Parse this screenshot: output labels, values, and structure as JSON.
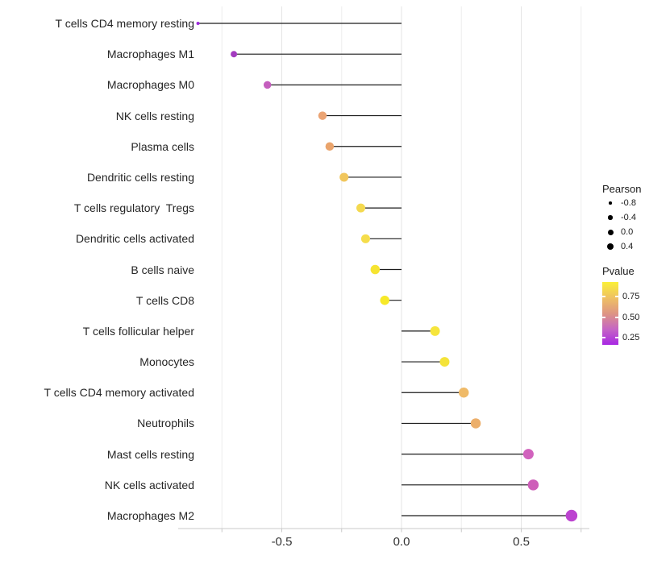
{
  "chart_data": {
    "type": "scatter",
    "variant": "lollipop",
    "orientation": "horizontal",
    "title": "",
    "xlabel": "",
    "ylabel": "",
    "xlim": [
      -0.93,
      0.79
    ],
    "grid": true,
    "baseline": 0,
    "x_gridlines": [
      -0.75,
      -0.5,
      -0.25,
      0,
      0.25,
      0.5,
      0.75
    ],
    "x_major_ticks": [
      -0.5,
      0,
      0.5
    ],
    "x_tick_labels": [
      "-0.5",
      "0.0",
      "0.5"
    ],
    "points": [
      {
        "label": "T cells CD4 memory resting",
        "pearson": -0.85,
        "color": "#9D2BDB",
        "diameter": 4
      },
      {
        "label": "Macrophages M1",
        "pearson": -0.7,
        "color": "#A33CBF",
        "diameter": 8
      },
      {
        "label": "Macrophages M0",
        "pearson": -0.56,
        "color": "#C55EBE",
        "diameter": 9.5
      },
      {
        "label": "NK cells resting",
        "pearson": -0.33,
        "color": "#EBA474",
        "diameter": 10.5
      },
      {
        "label": "Plasma cells",
        "pearson": -0.3,
        "color": "#EAA46C",
        "diameter": 10.5
      },
      {
        "label": "Dendritic cells resting",
        "pearson": -0.24,
        "color": "#F1C65C",
        "diameter": 11
      },
      {
        "label": "T cells regulatory  Tregs",
        "pearson": -0.17,
        "color": "#F4D94F",
        "diameter": 11
      },
      {
        "label": "Dendritic cells activated",
        "pearson": -0.15,
        "color": "#F5DD4B",
        "diameter": 11
      },
      {
        "label": "B cells naive",
        "pearson": -0.11,
        "color": "#F6E431",
        "diameter": 11.5
      },
      {
        "label": "T cells CD8",
        "pearson": -0.07,
        "color": "#F7E928",
        "diameter": 11.5
      },
      {
        "label": "T cells follicular helper",
        "pearson": 0.14,
        "color": "#F6E53C",
        "diameter": 12
      },
      {
        "label": "Monocytes",
        "pearson": 0.18,
        "color": "#F4E339",
        "diameter": 12
      },
      {
        "label": "T cells CD4 memory activated",
        "pearson": 0.26,
        "color": "#EFBA68",
        "diameter": 12.5
      },
      {
        "label": "Neutrophils",
        "pearson": 0.31,
        "color": "#ECAF6B",
        "diameter": 12.5
      },
      {
        "label": "Mast cells resting",
        "pearson": 0.53,
        "color": "#D162BD",
        "diameter": 13
      },
      {
        "label": "NK cells activated",
        "pearson": 0.55,
        "color": "#CE5EB9",
        "diameter": 13.5
      },
      {
        "label": "Macrophages M2",
        "pearson": 0.71,
        "color": "#BC44D0",
        "diameter": 14.5
      }
    ],
    "size_legend": {
      "title": "Pearson",
      "entries": [
        {
          "label": "-0.8",
          "diameter": 3.5
        },
        {
          "label": "-0.4",
          "diameter": 5.5
        },
        {
          "label": "0.0",
          "diameter": 7
        },
        {
          "label": "0.4",
          "diameter": 8
        }
      ]
    },
    "color_legend": {
      "title": "Pvalue",
      "tick_labels": [
        "0.75",
        "0.50",
        "0.25"
      ],
      "gradient_stops_top_to_bottom": [
        "#FAF038",
        "#EFC163",
        "#DE9583",
        "#C565C4",
        "#A827E3"
      ]
    },
    "colors": {
      "segment": "#1C1C1C",
      "gridline_major": "#E4E4E4",
      "gridline_minor": "#EDEDED",
      "axis_line": "#C9C9C9",
      "legend_dot": "#000000"
    }
  }
}
